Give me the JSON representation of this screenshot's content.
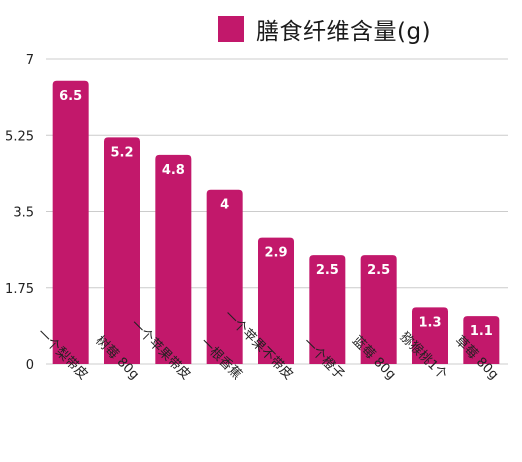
{
  "chart_data": {
    "type": "bar",
    "categories": [
      "一个梨带皮",
      "树莓 80g",
      "一个苹果带皮",
      "一根香蕉",
      "一个苹果不带皮",
      "一个橙子",
      "蓝莓 80g",
      "猕猴桃1个",
      "草莓 80g"
    ],
    "series": [
      {
        "name": "膳食纤维含量(g)",
        "values": [
          6.5,
          5.2,
          4.8,
          4,
          2.9,
          2.5,
          2.5,
          1.3,
          1.1
        ]
      }
    ],
    "data_labels": [
      "6.5",
      "5.2",
      "4.8",
      "4",
      "2.9",
      "2.5",
      "2.5",
      "1.3",
      "1.1"
    ],
    "y_ticks": [
      "0",
      "1.75",
      "3.5",
      "5.25",
      "7"
    ],
    "y_tick_values": [
      0,
      1.75,
      3.5,
      5.25,
      7
    ],
    "ylim": [
      0,
      7
    ],
    "grid": true,
    "legend_position": "top-right",
    "bar_color": "#C2186B",
    "grid_color": "#CCCCCC",
    "label_color": "#FFFFFF"
  }
}
